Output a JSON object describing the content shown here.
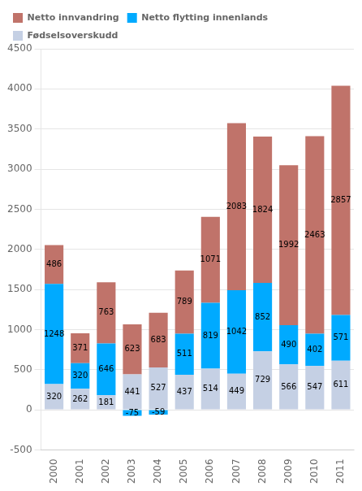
{
  "chart_data": {
    "type": "bar",
    "stacked": true,
    "categories": [
      "2000",
      "2001",
      "2002",
      "2003",
      "2004",
      "2005",
      "2006",
      "2007",
      "2008",
      "2009",
      "2010",
      "2011"
    ],
    "series": [
      {
        "name": "Fødselsoverskudd",
        "color": "#c5d0e4",
        "values": [
          320,
          262,
          181,
          441,
          527,
          437,
          514,
          449,
          729,
          566,
          547,
          611
        ]
      },
      {
        "name": "Netto flytting innenlands",
        "color": "#00aaff",
        "values": [
          1248,
          320,
          646,
          -75,
          -59,
          511,
          819,
          1042,
          852,
          490,
          402,
          571
        ]
      },
      {
        "name": "Netto innvandring",
        "color": "#c0736a",
        "values": [
          486,
          371,
          763,
          623,
          683,
          789,
          1071,
          2083,
          1824,
          1992,
          2463,
          2857
        ]
      }
    ],
    "ylim": [
      -500,
      4500
    ],
    "yticks": [
      -500,
      0,
      500,
      1000,
      1500,
      2000,
      2500,
      3000,
      3500,
      4000,
      4500
    ],
    "grid": true,
    "legend": "upper left",
    "data_labels": true
  }
}
